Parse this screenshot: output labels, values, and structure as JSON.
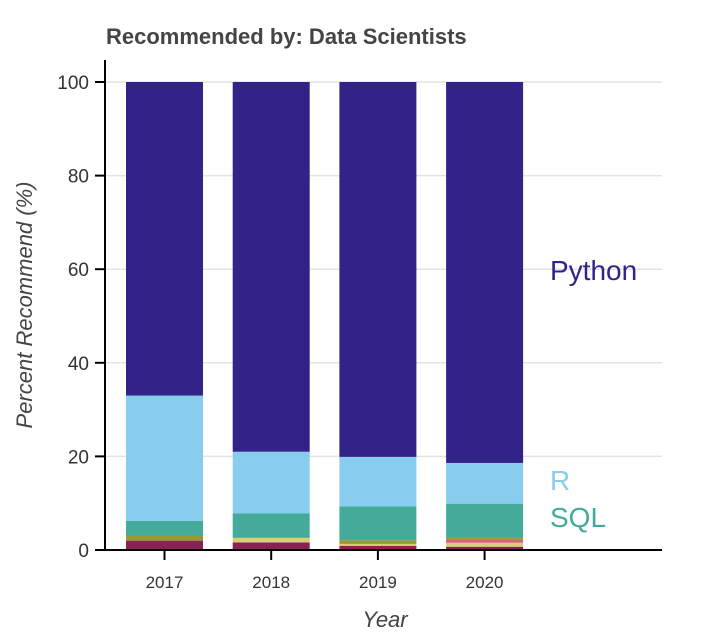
{
  "chart_data": {
    "type": "bar",
    "stacked": true,
    "title": "Recommended by: Data Scientists",
    "xlabel": "Year",
    "ylabel": "Percent Recommend (%)",
    "ylim": [
      0,
      100
    ],
    "yticks": [
      0,
      20,
      40,
      60,
      80,
      100
    ],
    "grid": "horizontal",
    "categories": [
      "2017",
      "2018",
      "2019",
      "2020"
    ],
    "series": [
      {
        "values": [
          2.0,
          1.6,
          0.9,
          0.7
        ],
        "color": "#882255"
      },
      {
        "values": [
          0.0,
          1.0,
          0.4,
          0.85
        ],
        "color": "#DDCC77"
      },
      {
        "values": [
          0.0,
          0.0,
          0.0,
          0.6
        ],
        "color": "#CC6677"
      },
      {
        "values": [
          1.0,
          0.0,
          0.8,
          0.5
        ],
        "color": "#999933"
      },
      {
        "name": "SQL",
        "values": [
          3.2,
          5.2,
          7.2,
          7.25
        ],
        "color": "#44AA99"
      },
      {
        "name": "R",
        "values": [
          26.8,
          13.2,
          10.6,
          8.7
        ],
        "color": "#88CCEE"
      },
      {
        "name": "Python",
        "values": [
          67.0,
          79.0,
          80.1,
          81.4
        ],
        "color": "#332288"
      }
    ]
  }
}
